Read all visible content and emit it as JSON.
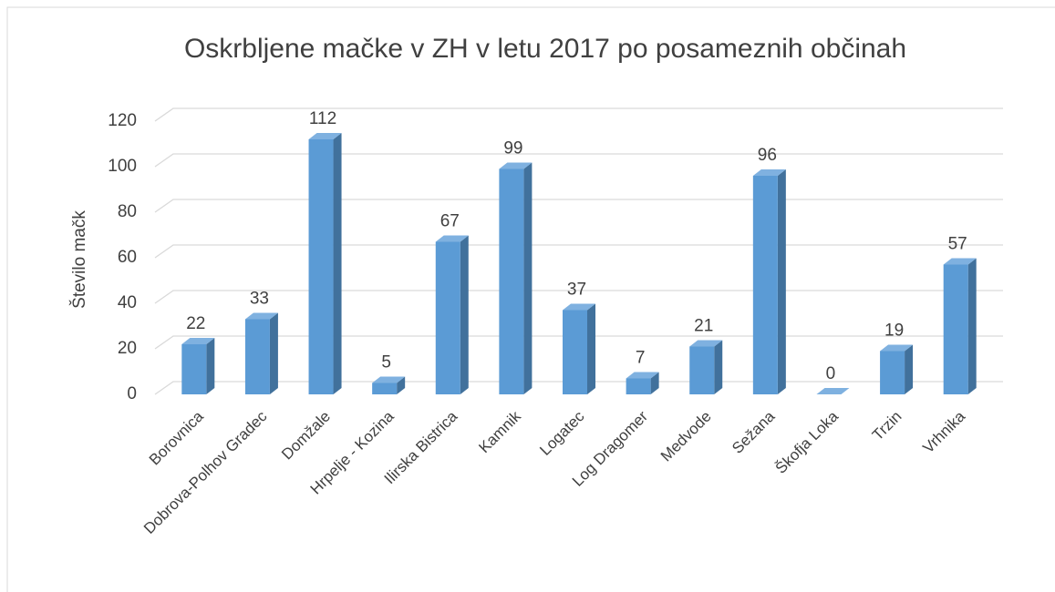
{
  "chart_data": {
    "type": "bar3d",
    "title": "Oskrbljene mačke v ZH v letu 2017 po posameznih občinah",
    "y_label": "Število mačk",
    "categories": [
      "Borovnica",
      "Dobrova-Polhov Gradec",
      "Domžale",
      "Hrpelje - Kozina",
      "Ilirska Bistrica",
      "Kamnik",
      "Logatec",
      "Log Dragomer",
      "Medvode",
      "Sežana",
      "Škofja Loka",
      "Trzin",
      "Vrhnika"
    ],
    "values": [
      22,
      33,
      112,
      5,
      67,
      99,
      37,
      7,
      21,
      96,
      0,
      19,
      57
    ],
    "color": "#5b9bd5",
    "ylim": [
      0,
      120
    ],
    "yticks": [
      0,
      20,
      40,
      60,
      80,
      100,
      120
    ],
    "grid": true
  }
}
